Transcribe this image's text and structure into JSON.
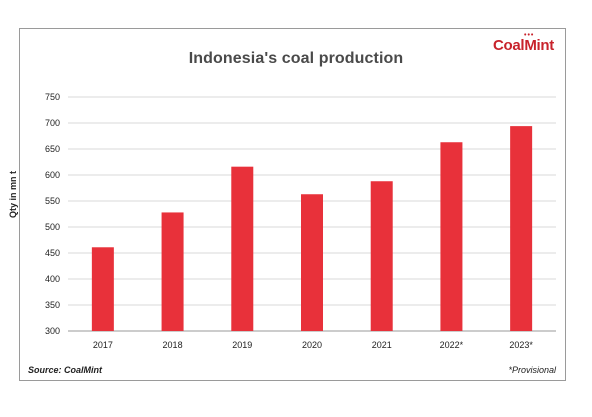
{
  "chart_data": {
    "type": "bar",
    "title": "Indonesia's coal production",
    "xlabel": "",
    "ylabel": "Qty in mn t",
    "categories": [
      "2017",
      "2018",
      "2019",
      "2020",
      "2021",
      "2022*",
      "2023*"
    ],
    "values": [
      461,
      528,
      616,
      563,
      588,
      663,
      694
    ],
    "ylim": [
      300,
      750
    ],
    "yticks": [
      300,
      350,
      400,
      450,
      500,
      550,
      600,
      650,
      700,
      750
    ],
    "grid": true,
    "bar_color": "#e8313a"
  },
  "logo": {
    "text_coal": "Coal",
    "text_mint": "Mint"
  },
  "source": "Source: CoalMint",
  "footnote": "*Provisional"
}
